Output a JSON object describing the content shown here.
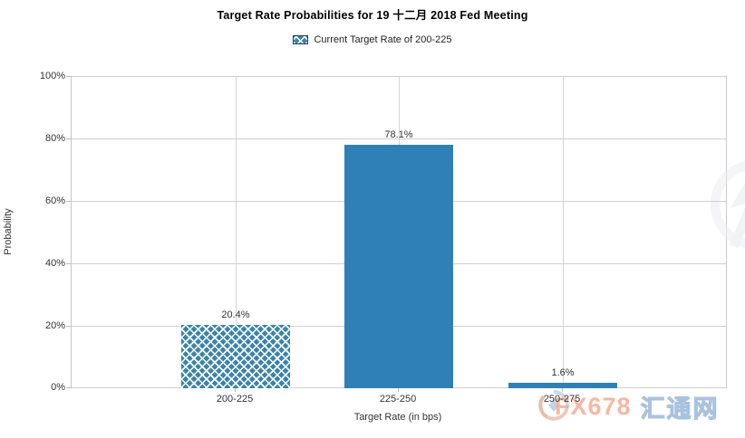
{
  "chart_data": {
    "type": "bar",
    "title": "Target Rate Probabilities for 19 十二月 2018  Fed Meeting",
    "legend": [
      "Current Target Rate of 200-225"
    ],
    "legend_position": "top",
    "categories": [
      "200-225",
      "225-250",
      "250-275"
    ],
    "values": [
      20.4,
      78.1,
      1.6
    ],
    "value_labels": [
      "20.4%",
      "78.1%",
      "1.6%"
    ],
    "bar_styles": [
      "crosshatch",
      "solid",
      "solid"
    ],
    "xlabel": "Target Rate (in bps)",
    "ylabel": "Probability",
    "ylim": [
      0,
      100
    ],
    "ytick_values": [
      0,
      20,
      40,
      60,
      80,
      100
    ],
    "ytick_labels": [
      "0%",
      "20%",
      "40%",
      "60%",
      "80%",
      "100%"
    ],
    "grid": true,
    "colors": {
      "solid_bar": "#2e80b5",
      "hatch_bar_base": "#3b84ad",
      "gridline": "#cfcfcf",
      "axis_text": "#333333",
      "title_text": "#000000"
    }
  },
  "watermarks": {
    "fx678": "FX678",
    "huitong": "汇通网"
  }
}
